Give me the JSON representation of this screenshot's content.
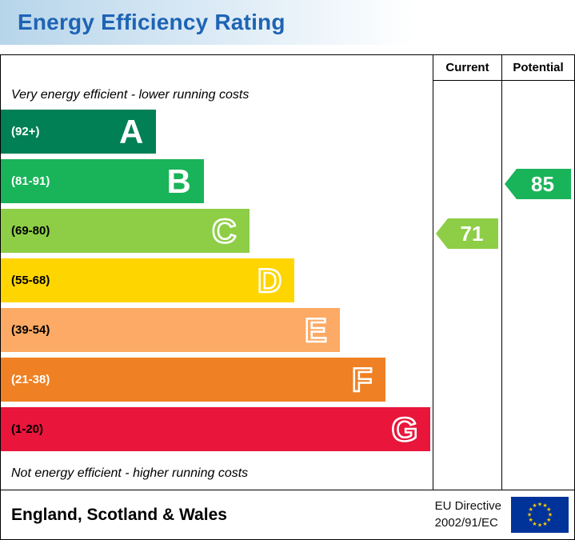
{
  "header": {
    "title": "Energy Efficiency Rating",
    "title_color": "#1e64b4"
  },
  "chart_data": {
    "type": "bar",
    "orientation": "horizontal",
    "title": "Energy Efficiency Rating",
    "columns": {
      "current": "Current",
      "potential": "Potential"
    },
    "top_note": "Very energy efficient - lower running costs",
    "bottom_note": "Not energy efficient - higher running costs",
    "bands": [
      {
        "letter": "A",
        "range": "(92+)",
        "min": 92,
        "max": 100,
        "color": "#008054",
        "label_color": "#ffffff",
        "letter_style": "solid",
        "width_pct": 36
      },
      {
        "letter": "B",
        "range": "(81-91)",
        "min": 81,
        "max": 91,
        "color": "#19b459",
        "label_color": "#ffffff",
        "letter_style": "solid",
        "width_pct": 47
      },
      {
        "letter": "C",
        "range": "(69-80)",
        "min": 69,
        "max": 80,
        "color": "#8dce46",
        "label_color": "#000000",
        "letter_style": "outline",
        "width_pct": 57.5
      },
      {
        "letter": "D",
        "range": "(55-68)",
        "min": 55,
        "max": 68,
        "color": "#ffd500",
        "label_color": "#000000",
        "letter_style": "outline",
        "width_pct": 68
      },
      {
        "letter": "E",
        "range": "(39-54)",
        "min": 39,
        "max": 54,
        "color": "#fcaa65",
        "label_color": "#000000",
        "letter_style": "outline",
        "width_pct": 78.5
      },
      {
        "letter": "F",
        "range": "(21-38)",
        "min": 21,
        "max": 38,
        "color": "#ef8023",
        "label_color": "#ffffff",
        "letter_style": "outline",
        "width_pct": 89
      },
      {
        "letter": "G",
        "range": "(1-20)",
        "min": 1,
        "max": 20,
        "color": "#e9153b",
        "label_color": "#000000",
        "letter_style": "outline",
        "width_pct": 99.5
      }
    ],
    "current": {
      "label": "Current",
      "value": 71,
      "band": "C",
      "color": "#8dce46"
    },
    "potential": {
      "label": "Potential",
      "value": 85,
      "band": "B",
      "color": "#19b459"
    }
  },
  "footer": {
    "region": "England, Scotland & Wales",
    "directive_line1": "EU Directive",
    "directive_line2": "2002/91/EC",
    "eu_flag": {
      "background": "#003399",
      "star_color": "#ffcc00"
    }
  }
}
